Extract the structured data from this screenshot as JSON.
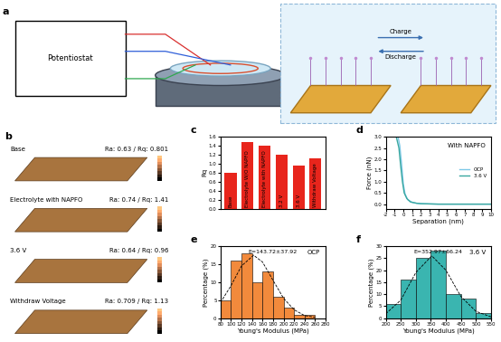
{
  "panel_a": {
    "label": "a",
    "potentiostat": "Potentiostat",
    "charge": "Charge",
    "discharge": "Discharge"
  },
  "panel_b": {
    "label": "b",
    "images": [
      {
        "name": "Base",
        "roughness": "Ra: 0.63 / Rq: 0.801"
      },
      {
        "name": "Electrolyte with NAPFO",
        "roughness": "Ra: 0.74 / Rq: 1.41"
      },
      {
        "name": "3.6 V",
        "roughness": "Ra: 0.64 / Rq: 0.96"
      },
      {
        "name": "Withdraw Voltage",
        "roughness": "Ra: 0.709 / Rq: 1.13"
      }
    ]
  },
  "chart_data": [
    {
      "panel_label": "c",
      "type": "bar",
      "y_label": "Rq",
      "categories": [
        "Base",
        "Electrolyte W/O NAPFO",
        "Electrolyte with NAPFO",
        "3.2 V",
        "3.6 V",
        "Withdraw Voltage"
      ],
      "values": [
        0.8,
        1.48,
        1.41,
        1.2,
        0.96,
        1.13
      ],
      "color": "#e8251c",
      "ylim": [
        0,
        1.6
      ],
      "yticks": [
        {
          "value": 0,
          "label": "0.0"
        },
        0.2,
        0.4,
        0.6,
        0.8,
        {
          "value": 1,
          "label": "1.0"
        },
        1.2,
        1.4,
        1.6
      ],
      "tick_labels": "y"
    },
    {
      "panel_label": "d",
      "type": "line",
      "title": "With NAPFO",
      "x_label": "Separation (nm)",
      "y_label": "Force (nN)",
      "series": [
        {
          "name": "OCP",
          "color": "#7cc8e8",
          "x": [
            -0.6,
            -0.4,
            -0.2,
            0,
            0.2,
            0.5,
            1,
            1.5,
            2,
            3,
            4,
            6,
            8,
            10
          ],
          "values": [
            3.0,
            2.6,
            1.8,
            0.9,
            0.45,
            0.2,
            0.08,
            0.04,
            0.02,
            0.01,
            0,
            0,
            0,
            0
          ]
        },
        {
          "name": "3.6 V",
          "color": "#3aa8a0",
          "x": [
            -0.8,
            -0.5,
            -0.3,
            -0.1,
            0.1,
            0.4,
            0.8,
            1.5,
            2,
            3,
            4,
            6,
            8,
            10
          ],
          "values": [
            3.0,
            2.5,
            1.7,
            1.0,
            0.5,
            0.25,
            0.1,
            0.04,
            0.02,
            0.01,
            0,
            0,
            0,
            0
          ]
        }
      ],
      "xlim": [
        -2,
        10
      ],
      "xticks": [
        -2,
        -1,
        0,
        1,
        2,
        3,
        4,
        5,
        6,
        7,
        8,
        9,
        10
      ],
      "ylim": [
        -0.2,
        3.0
      ],
      "yticks": [
        {
          "value": 0,
          "label": "0.0"
        },
        0.5,
        {
          "value": 1,
          "label": "1.0"
        },
        1.5,
        {
          "value": 2,
          "label": "2.0"
        },
        2.5,
        {
          "value": 3,
          "label": "3.0"
        }
      ],
      "legend": "center right"
    },
    {
      "panel_label": "e",
      "type": "histogram",
      "title": "OCP",
      "annotation": "E=143.72±37.92",
      "x_label": "Young's Modulus (MPa)",
      "y_label": "Percentage (%)",
      "bins": [
        80,
        100,
        120,
        140,
        160,
        180,
        200,
        220,
        240,
        260,
        280
      ],
      "counts": [
        5,
        16,
        18,
        10,
        13,
        6,
        3,
        1,
        1,
        0
      ],
      "color": "#f28a3c",
      "fit": {
        "x": [
          80,
          100,
          120,
          143,
          160,
          180,
          200,
          220,
          240,
          260
        ],
        "values": [
          4.3,
          9,
          14.5,
          17.5,
          15.6,
          10.5,
          5.5,
          2.3,
          0.7,
          0.2
        ]
      },
      "xlim": [
        80,
        280
      ],
      "xticks": [
        80,
        100,
        120,
        140,
        160,
        180,
        200,
        220,
        240,
        260,
        280
      ],
      "ylim": [
        0,
        20
      ],
      "yticks": [
        0,
        5,
        10,
        15,
        20
      ]
    },
    {
      "panel_label": "f",
      "type": "histogram",
      "title": "3.6 V",
      "annotation": "E=352.97±66.24",
      "x_label": "Young's Modulus (MPa)",
      "y_label": "Percentage (%)",
      "bins": [
        200,
        250,
        300,
        350,
        400,
        450,
        500,
        550
      ],
      "counts": [
        6,
        16,
        25,
        28,
        10,
        8,
        2
      ],
      "color": "#3ab5b0",
      "fit": {
        "x": [
          200,
          250,
          300,
          353,
          400,
          450,
          500,
          550
        ],
        "values": [
          1.8,
          7.5,
          19,
          26,
          20,
          9,
          2.8,
          0.5
        ]
      },
      "xlim": [
        200,
        550
      ],
      "xticks": [
        200,
        250,
        300,
        350,
        400,
        450,
        500,
        550
      ],
      "ylim": [
        0,
        30
      ],
      "yticks": [
        0,
        5,
        10,
        15,
        20,
        25,
        30
      ]
    }
  ]
}
